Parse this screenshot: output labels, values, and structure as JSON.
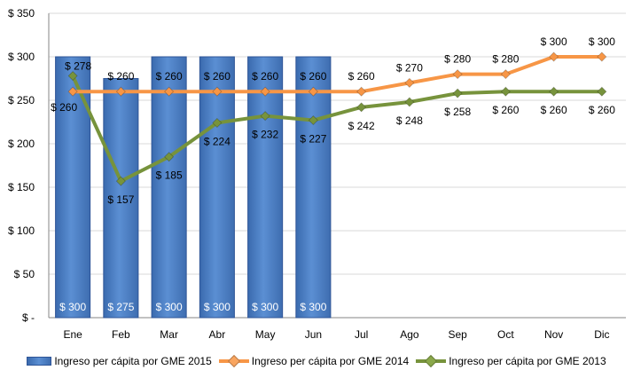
{
  "chart_data": {
    "type": "bar+line",
    "y_axis": {
      "min": 0,
      "max": 350,
      "step": 50,
      "tick_labels": [
        "$ -",
        "$ 50",
        "$ 100",
        "$ 150",
        "$ 200",
        "$ 250",
        "$ 300",
        "$ 350"
      ]
    },
    "categories": [
      "Ene",
      "Feb",
      "Mar",
      "Abr",
      "May",
      "Jun",
      "Jul",
      "Ago",
      "Sep",
      "Oct",
      "Nov",
      "Dic"
    ],
    "series": [
      {
        "name": "Ingreso per cápita por GME 2015",
        "type": "bar",
        "color": "#4f81bd",
        "values": [
          300,
          275,
          300,
          300,
          300,
          300,
          null,
          null,
          null,
          null,
          null,
          null
        ],
        "labels": [
          "$ 300",
          "$ 275",
          "$ 300",
          "$ 300",
          "$ 300",
          "$ 300",
          "",
          "",
          "",
          "",
          "",
          ""
        ]
      },
      {
        "name": "Ingreso per cápita por GME 2014",
        "type": "line",
        "color": "#f79646",
        "values": [
          260,
          260,
          260,
          260,
          260,
          260,
          260,
          270,
          280,
          280,
          300,
          300
        ],
        "labels": [
          "$ 260",
          "$ 260",
          "$ 260",
          "$ 260",
          "$ 260",
          "$ 260",
          "$ 260",
          "$ 270",
          "$ 280",
          "$ 280",
          "$ 300",
          "$ 300"
        ]
      },
      {
        "name": "Ingreso per cápita por GME 2013",
        "type": "line",
        "color": "#77933c",
        "values": [
          278,
          157,
          185,
          224,
          232,
          227,
          242,
          248,
          258,
          260,
          260,
          260
        ],
        "labels": [
          "$ 278",
          "$ 157",
          "$ 185",
          "$ 224",
          "$ 232",
          "$ 227",
          "$ 242",
          "$ 248",
          "$ 258",
          "$ 260",
          "$ 260",
          "$ 260"
        ]
      }
    ],
    "grid": true,
    "legend_position": "bottom"
  }
}
